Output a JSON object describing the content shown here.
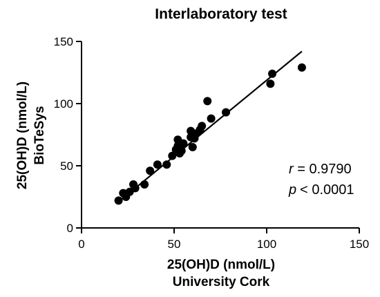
{
  "chart_data": {
    "type": "scatter",
    "title": "Interlaboratory test",
    "xlabel_lines": [
      "25(OH)D (nmol/L)",
      "University Cork"
    ],
    "ylabel_lines": [
      "25(OH)D (nmol/L)",
      "BioTeSys"
    ],
    "xlim": [
      0,
      150
    ],
    "ylim": [
      0,
      150
    ],
    "xticks": [
      0,
      50,
      100,
      150
    ],
    "yticks": [
      0,
      50,
      100,
      150
    ],
    "grid": false,
    "series": [
      {
        "points": [
          [
            20,
            22
          ],
          [
            22.5,
            28
          ],
          [
            24,
            25
          ],
          [
            26,
            29
          ],
          [
            28,
            35
          ],
          [
            29,
            32
          ],
          [
            34,
            35
          ],
          [
            37,
            46
          ],
          [
            41,
            51
          ],
          [
            46,
            51
          ],
          [
            49,
            58
          ],
          [
            51,
            63
          ],
          [
            52,
            66
          ],
          [
            52,
            71
          ],
          [
            53,
            60
          ],
          [
            54,
            62
          ],
          [
            55,
            68
          ],
          [
            59,
            73
          ],
          [
            59,
            78
          ],
          [
            60,
            65
          ],
          [
            61,
            72
          ],
          [
            62,
            76
          ],
          [
            64,
            79
          ],
          [
            65,
            82
          ],
          [
            68,
            102
          ],
          [
            70,
            88
          ],
          [
            78,
            93
          ],
          [
            102,
            116
          ],
          [
            103,
            124
          ],
          [
            119,
            129
          ]
        ],
        "color": "#000000"
      }
    ],
    "regression_line": {
      "x": [
        20,
        119
      ],
      "y": [
        21,
        142
      ]
    },
    "annotations": {
      "r": {
        "symbol": "r",
        "text": " = 0.9790"
      },
      "p": {
        "symbol": "p",
        "text": "< 0.0001"
      }
    }
  }
}
